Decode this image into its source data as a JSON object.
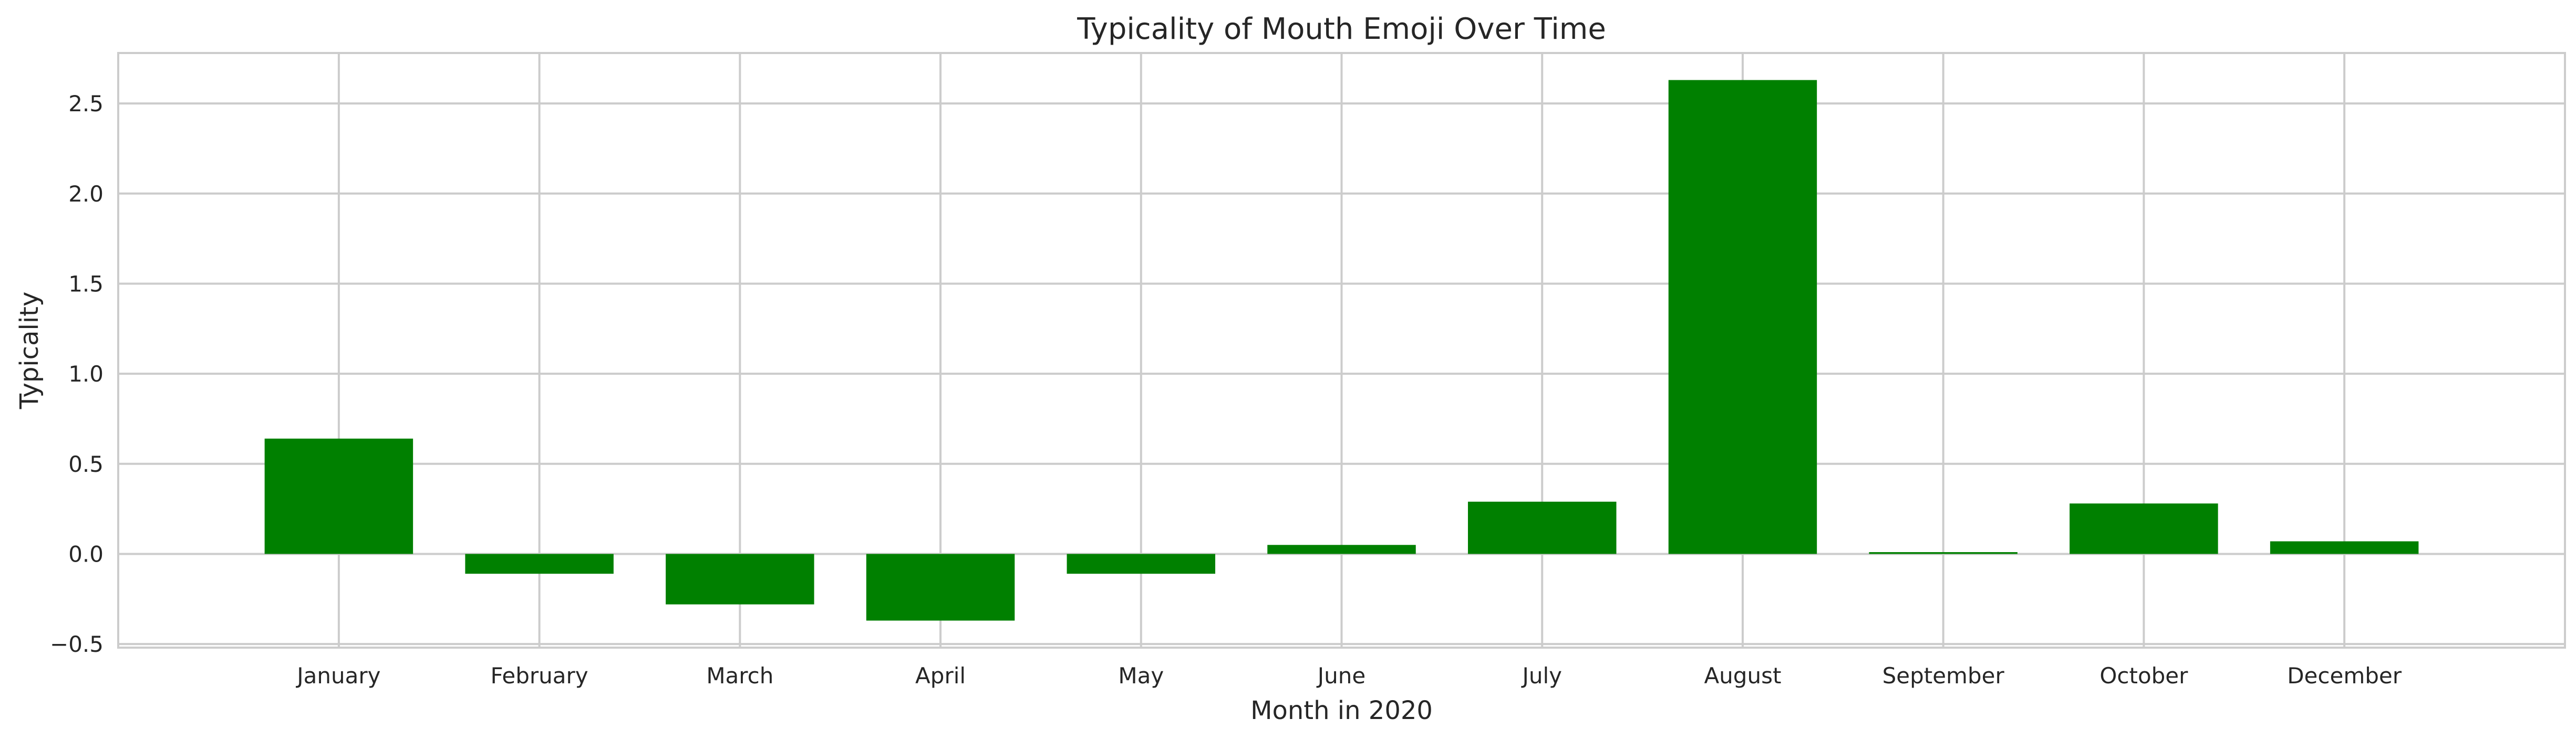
{
  "chart_data": {
    "type": "bar",
    "title": "Typicality of Mouth Emoji Over Time",
    "xlabel": "Month in 2020",
    "ylabel": "Typicality",
    "categories": [
      "January",
      "February",
      "March",
      "April",
      "May",
      "June",
      "July",
      "August",
      "September",
      "October",
      "December"
    ],
    "values": [
      0.64,
      -0.11,
      -0.28,
      -0.37,
      -0.11,
      0.05,
      0.29,
      2.63,
      0.01,
      0.28,
      0.07
    ],
    "ylim": [
      -0.52,
      2.78
    ],
    "yticks": [
      -0.5,
      0.0,
      0.5,
      1.0,
      1.5,
      2.0,
      2.5
    ],
    "ytick_labels": [
      "−0.5",
      "0.0",
      "0.5",
      "1.0",
      "1.5",
      "2.0",
      "2.5"
    ],
    "grid": true,
    "colors": {
      "bar": "#008000",
      "grid": "#cccccc",
      "axes_edge": "#cccccc",
      "background": "#ffffff"
    }
  }
}
